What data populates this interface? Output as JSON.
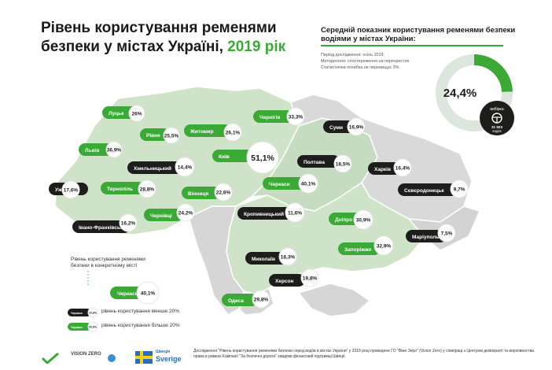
{
  "title": {
    "main": "Рівень користування ременями безпеки у містах Україні,",
    "year": "2019 рік"
  },
  "average": {
    "title": "Середній показник користування ременями безпеки водіями  у містах України:",
    "notes": [
      "Період дослідження: осінь 2019.",
      "Методологія: спостереження на перехрестях.",
      "Статистична похибка не перевищує 3%."
    ],
    "value": "24,4%",
    "fraction": 0.244,
    "sample_label": "вибірка",
    "sample_value": "31 503",
    "sample_unit": "водіїв",
    "color_fill": "#3aa935",
    "color_rest": "#dde6dc"
  },
  "legend": {
    "title": "Рівень користування ременями безпеки в конкретному місті",
    "city_sample": "Черкаси",
    "value_sample": "40,1%",
    "low_label": "рівень користування менше 20%",
    "high_label": "рівень користування більше 20%",
    "low_chip_text": "Черкаси",
    "low_chip_value": "10,8%",
    "high_chip_text": "Черкаси",
    "high_chip_value": "20,9%",
    "color_low": "#1d1d1b",
    "color_high": "#3aa935"
  },
  "chart_data": {
    "type": "map",
    "unit": "%",
    "threshold": 20,
    "cities": [
      {
        "name": "Луцьк",
        "value": 26,
        "label": "26%"
      },
      {
        "name": "Рівне",
        "value": 25.5,
        "label": "25,5%"
      },
      {
        "name": "Житомир",
        "value": 26.1,
        "label": "26,1%"
      },
      {
        "name": "Чернігів",
        "value": 33.3,
        "label": "33,3%"
      },
      {
        "name": "Суми",
        "value": 16.9,
        "label": "16,9%"
      },
      {
        "name": "Львів",
        "value": 36.9,
        "label": "36,9%"
      },
      {
        "name": "Хмельницький",
        "value": 14.4,
        "label": "14,4%"
      },
      {
        "name": "Київ",
        "value": 51.1,
        "label": "51,1%"
      },
      {
        "name": "Полтава",
        "value": 18.5,
        "label": "18,5%"
      },
      {
        "name": "Харків",
        "value": 16.4,
        "label": "16,4%"
      },
      {
        "name": "Ужгород",
        "value": 17.6,
        "label": "17,6%"
      },
      {
        "name": "Тернопіль",
        "value": 28.8,
        "label": "28,8%"
      },
      {
        "name": "Вінниця",
        "value": 22.6,
        "label": "22,6%"
      },
      {
        "name": "Черкаси",
        "value": 40.1,
        "label": "40,1%"
      },
      {
        "name": "Сєвєродонецьк",
        "value": 9.7,
        "label": "9,7%"
      },
      {
        "name": "Чернівці",
        "value": 24.2,
        "label": "24,2%"
      },
      {
        "name": "Кропивницький",
        "value": 11.6,
        "label": "11,6%"
      },
      {
        "name": "Івано-Франківськ",
        "value": 16.2,
        "label": "16,2%"
      },
      {
        "name": "Дніпро",
        "value": 30.9,
        "label": "30,9%"
      },
      {
        "name": "Запоріжжя",
        "value": 32.9,
        "label": "32,9%"
      },
      {
        "name": "Маріуполь",
        "value": 7.5,
        "label": "7,5%"
      },
      {
        "name": "Миколаїв",
        "value": 18.3,
        "label": "18,3%"
      },
      {
        "name": "Херсон",
        "value": 19.8,
        "label": "19,8%"
      },
      {
        "name": "Одеса",
        "value": 29.8,
        "label": "29,8%"
      }
    ]
  },
  "footer": {
    "text": "Дослідження \"Рівень користування ременями безпеки серед водіїв в містах України\" у 2019 році проведене ГО \"Віжн Зеро\" (Vision Zero) у співпраці з Центром демократії та верховенства права в рамках Кампанії \"За безпечні дороги\" завдяки фінансовій підтримці Швеції.",
    "logo_vision": "VISION ZERO",
    "logo_sverige_top": "Швеція",
    "logo_sverige": "Sverige"
  }
}
